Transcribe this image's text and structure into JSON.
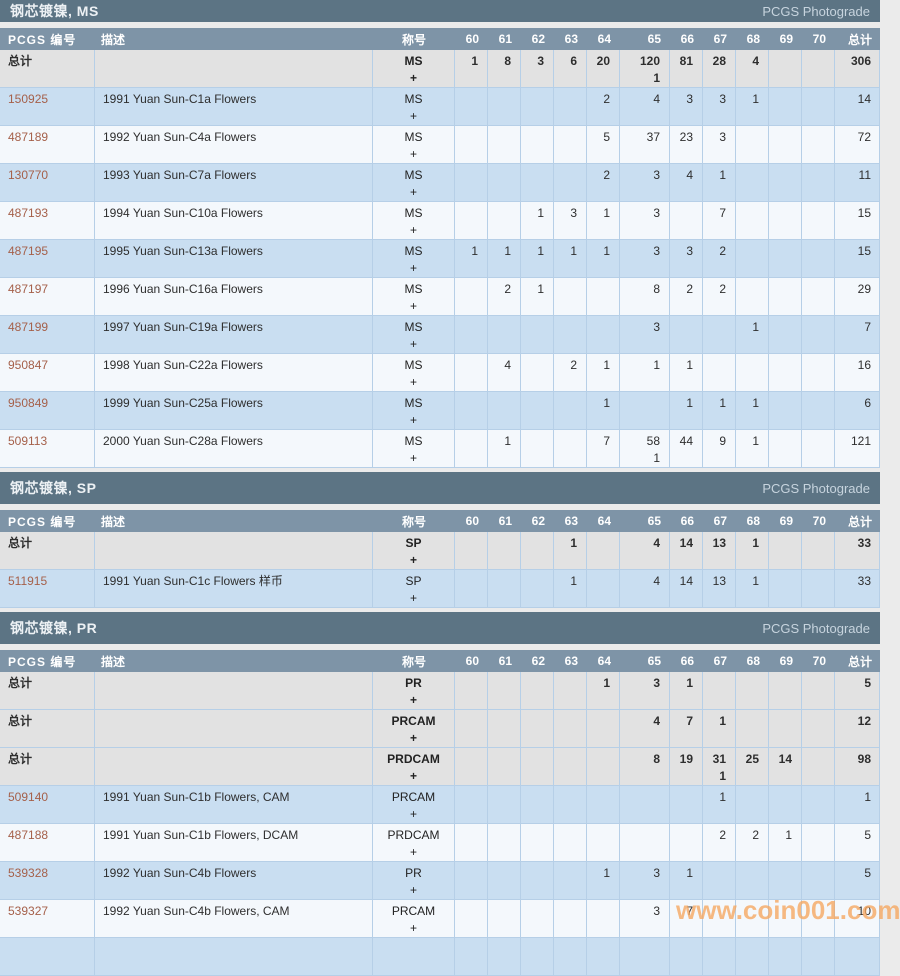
{
  "watermark": {
    "text": "www.coin001.com"
  },
  "photograde_label": "PCGS Photograde",
  "plus_sign": "+",
  "columns": {
    "number": "PCGS 编号",
    "desc": "描述",
    "desig": "称号",
    "grades": [
      "60",
      "61",
      "62",
      "63",
      "64",
      "65",
      "66",
      "67",
      "68",
      "69",
      "70"
    ],
    "total": "总计"
  },
  "sections": [
    {
      "title": "钢芯镀镍, MS",
      "rows": [
        {
          "type": "total",
          "number": "总计",
          "desc": "",
          "desig": "MS",
          "g": [
            "1",
            "8",
            "3",
            "6",
            "20",
            "120",
            "81",
            "28",
            "4",
            "",
            ""
          ],
          "gp": [
            "",
            "",
            "",
            "",
            "",
            "1",
            "",
            "",
            "",
            "",
            ""
          ],
          "total": "306",
          "total_plus": ""
        },
        {
          "type": "data",
          "number": "150925",
          "desc": "1991 Yuan Sun-C1a Flowers",
          "desig": "MS",
          "g": [
            "",
            "",
            "",
            "",
            "2",
            "4",
            "3",
            "3",
            "1",
            "",
            ""
          ],
          "total": "14"
        },
        {
          "type": "data",
          "number": "487189",
          "desc": "1992 Yuan Sun-C4a Flowers",
          "desig": "MS",
          "g": [
            "",
            "",
            "",
            "",
            "5",
            "37",
            "23",
            "3",
            "",
            "",
            ""
          ],
          "total": "72"
        },
        {
          "type": "data",
          "number": "130770",
          "desc": "1993 Yuan Sun-C7a Flowers",
          "desig": "MS",
          "g": [
            "",
            "",
            "",
            "",
            "2",
            "3",
            "4",
            "1",
            "",
            "",
            ""
          ],
          "total": "11"
        },
        {
          "type": "data",
          "number": "487193",
          "desc": "1994 Yuan Sun-C10a Flowers",
          "desig": "MS",
          "g": [
            "",
            "",
            "1",
            "3",
            "1",
            "3",
            "",
            "7",
            "",
            "",
            ""
          ],
          "total": "15"
        },
        {
          "type": "data",
          "number": "487195",
          "desc": "1995 Yuan Sun-C13a Flowers",
          "desig": "MS",
          "g": [
            "1",
            "1",
            "1",
            "1",
            "1",
            "3",
            "3",
            "2",
            "",
            "",
            ""
          ],
          "total": "15"
        },
        {
          "type": "data",
          "number": "487197",
          "desc": "1996 Yuan Sun-C16a Flowers",
          "desig": "MS",
          "g": [
            "",
            "2",
            "1",
            "",
            "",
            "8",
            "2",
            "2",
            "",
            "",
            ""
          ],
          "total": "29"
        },
        {
          "type": "data",
          "number": "487199",
          "desc": "1997 Yuan Sun-C19a Flowers",
          "desig": "MS",
          "g": [
            "",
            "",
            "",
            "",
            "",
            "3",
            "",
            "",
            "1",
            "",
            ""
          ],
          "total": "7"
        },
        {
          "type": "data",
          "number": "950847",
          "desc": "1998 Yuan Sun-C22a Flowers",
          "desig": "MS",
          "g": [
            "",
            "4",
            "",
            "2",
            "1",
            "1",
            "1",
            "",
            "",
            "",
            ""
          ],
          "total": "16"
        },
        {
          "type": "data",
          "number": "950849",
          "desc": "1999 Yuan Sun-C25a Flowers",
          "desig": "MS",
          "g": [
            "",
            "",
            "",
            "",
            "1",
            "",
            "1",
            "1",
            "1",
            "",
            ""
          ],
          "total": "6"
        },
        {
          "type": "data",
          "number": "509113",
          "desc": "2000 Yuan Sun-C28a Flowers",
          "desig": "MS",
          "g": [
            "",
            "1",
            "",
            "",
            "7",
            "58",
            "44",
            "9",
            "1",
            "",
            ""
          ],
          "gp": [
            "",
            "",
            "",
            "",
            "",
            "1",
            "",
            "",
            "",
            "",
            ""
          ],
          "total": "121"
        }
      ]
    },
    {
      "title": "钢芯镀镍, SP",
      "rows": [
        {
          "type": "total",
          "number": "总计",
          "desc": "",
          "desig": "SP",
          "g": [
            "",
            "",
            "",
            "1",
            "",
            "4",
            "14",
            "13",
            "1",
            "",
            ""
          ],
          "total": "33"
        },
        {
          "type": "data",
          "number": "511915",
          "desc": "1991 Yuan Sun-C1c Flowers 样币",
          "desig": "SP",
          "g": [
            "",
            "",
            "",
            "1",
            "",
            "4",
            "14",
            "13",
            "1",
            "",
            ""
          ],
          "total": "33"
        }
      ]
    },
    {
      "title": "钢芯镀镍, PR",
      "partial_row_after": true,
      "rows": [
        {
          "type": "total",
          "number": "总计",
          "desc": "",
          "desig": "PR",
          "g": [
            "",
            "",
            "",
            "",
            "1",
            "3",
            "1",
            "",
            "",
            "",
            ""
          ],
          "total": "5"
        },
        {
          "type": "total",
          "number": "总计",
          "desc": "",
          "desig": "PRCAM",
          "g": [
            "",
            "",
            "",
            "",
            "",
            "4",
            "7",
            "1",
            "",
            "",
            ""
          ],
          "total": "12"
        },
        {
          "type": "total",
          "number": "总计",
          "desc": "",
          "desig": "PRDCAM",
          "g": [
            "",
            "",
            "",
            "",
            "",
            "8",
            "19",
            "31",
            "25",
            "14",
            ""
          ],
          "gp": [
            "",
            "",
            "",
            "",
            "",
            "",
            "",
            "1",
            "",
            "",
            ""
          ],
          "total": "98"
        },
        {
          "type": "data",
          "number": "509140",
          "desc": "1991 Yuan Sun-C1b Flowers, CAM",
          "desig": "PRCAM",
          "g": [
            "",
            "",
            "",
            "",
            "",
            "",
            "",
            "1",
            "",
            "",
            ""
          ],
          "total": "1"
        },
        {
          "type": "data",
          "number": "487188",
          "desc": "1991 Yuan Sun-C1b Flowers, DCAM",
          "desig": "PRDCAM",
          "g": [
            "",
            "",
            "",
            "",
            "",
            "",
            "",
            "2",
            "2",
            "1",
            ""
          ],
          "total": "5"
        },
        {
          "type": "data",
          "number": "539328",
          "desc": "1992 Yuan Sun-C4b Flowers",
          "desig": "PR",
          "g": [
            "",
            "",
            "",
            "",
            "1",
            "3",
            "1",
            "",
            "",
            "",
            ""
          ],
          "total": "5"
        },
        {
          "type": "data",
          "number": "539327",
          "desc": "1992 Yuan Sun-C4b Flowers, CAM",
          "desig": "PRCAM",
          "g": [
            "",
            "",
            "",
            "",
            "",
            "3",
            "7",
            "",
            "",
            "",
            ""
          ],
          "total": "10"
        }
      ]
    }
  ]
}
